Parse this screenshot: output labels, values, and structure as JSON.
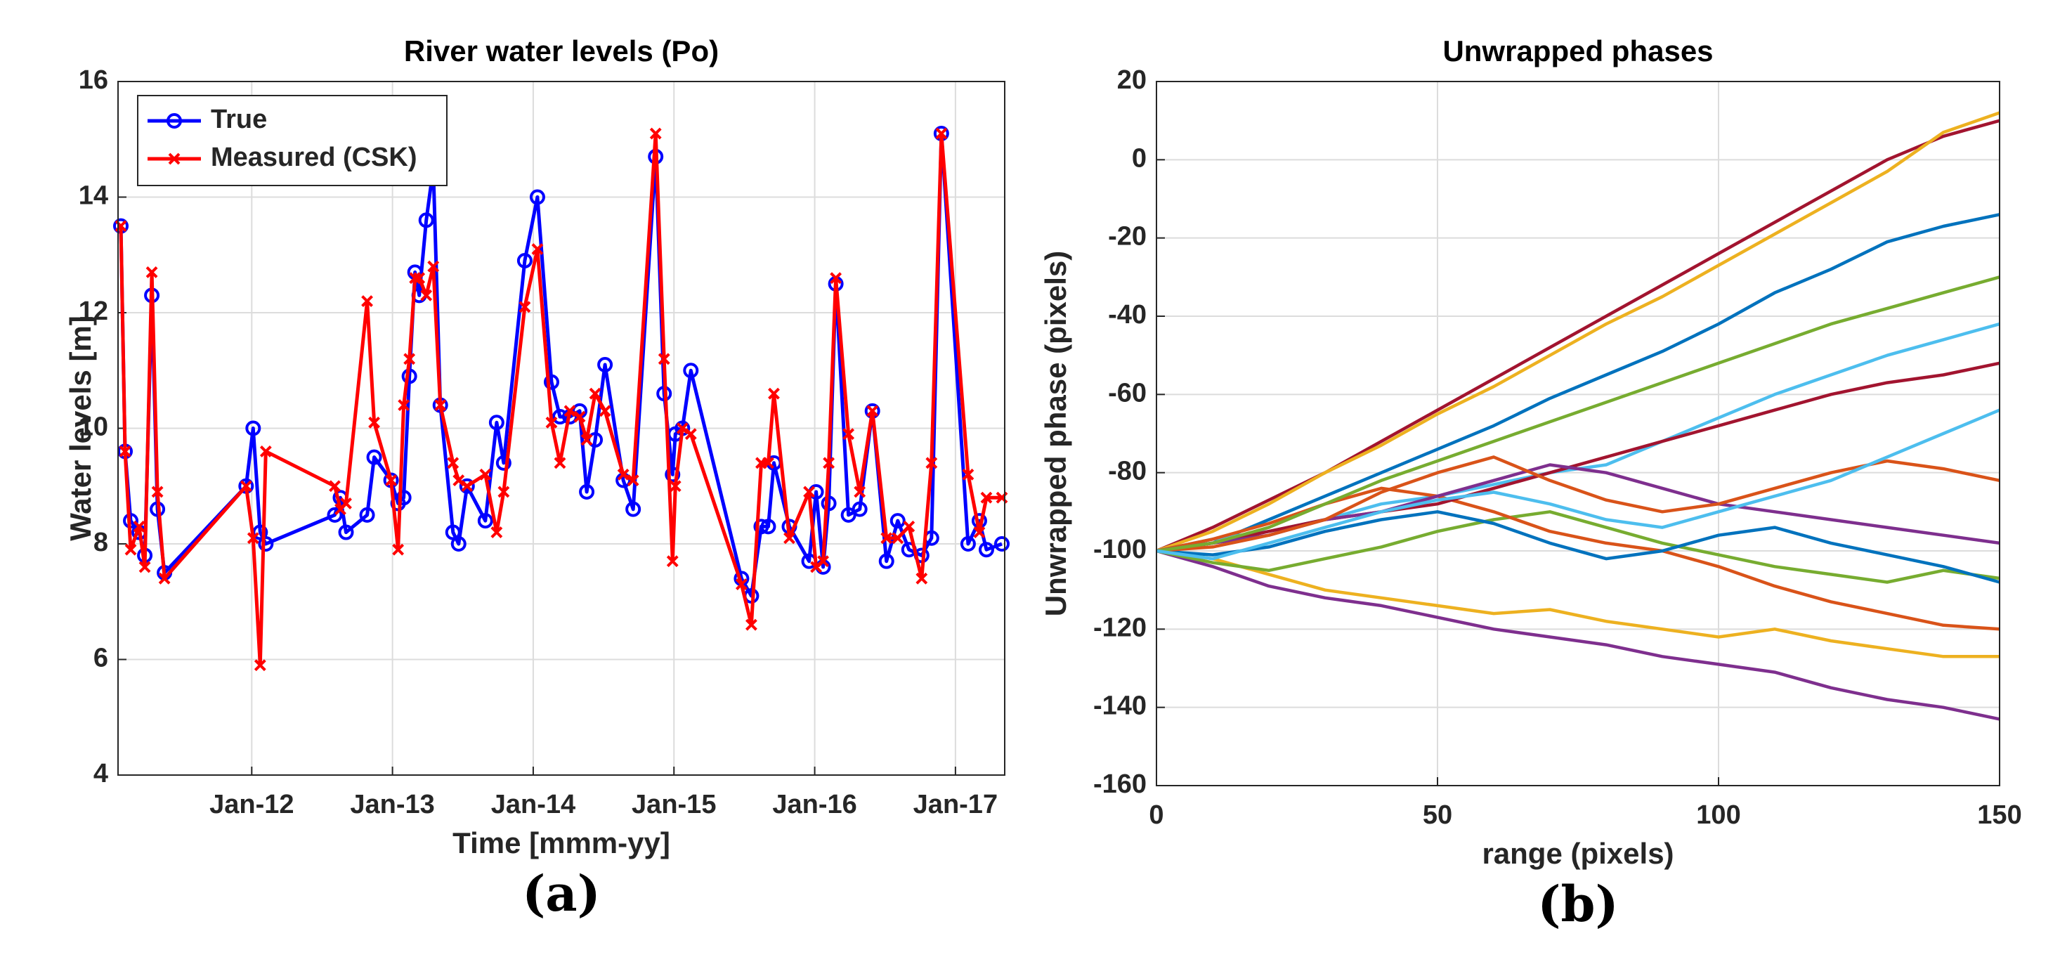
{
  "chart_data": [
    {
      "type": "line",
      "title": "River water levels (Po)",
      "xlabel": "Time [mmm-yy]",
      "ylabel": "Water levels [m]",
      "caption": "(a)",
      "x": [
        2011.07,
        2011.1,
        2011.14,
        2011.2,
        2011.24,
        2011.29,
        2011.33,
        2011.38,
        2011.96,
        2012.01,
        2012.06,
        2012.1,
        2012.59,
        2012.63,
        2012.67,
        2012.82,
        2012.87,
        2012.99,
        2013.04,
        2013.08,
        2013.12,
        2013.16,
        2013.19,
        2013.24,
        2013.29,
        2013.34,
        2013.43,
        2013.47,
        2013.53,
        2013.66,
        2013.74,
        2013.79,
        2013.94,
        2014.03,
        2014.13,
        2014.19,
        2014.26,
        2014.33,
        2014.38,
        2014.44,
        2014.51,
        2014.64,
        2014.71,
        2014.87,
        2014.93,
        2014.99,
        2015.01,
        2015.06,
        2015.12,
        2015.48,
        2015.55,
        2015.62,
        2015.67,
        2015.71,
        2015.82,
        2015.96,
        2016.01,
        2016.06,
        2016.1,
        2016.15,
        2016.24,
        2016.32,
        2016.41,
        2016.51,
        2016.59,
        2016.67,
        2016.76,
        2016.83,
        2016.9,
        2017.09,
        2017.17,
        2017.22,
        2017.33
      ],
      "series": [
        {
          "name": "True",
          "color": "#0000ff",
          "marker": "o",
          "values": [
            13.5,
            9.6,
            8.4,
            8.2,
            7.8,
            12.3,
            8.6,
            7.5,
            9.0,
            10.0,
            8.2,
            8.0,
            8.5,
            8.8,
            8.2,
            8.5,
            9.5,
            9.1,
            8.7,
            8.8,
            10.9,
            12.7,
            12.3,
            13.6,
            14.5,
            10.4,
            8.2,
            8.0,
            9.0,
            8.4,
            10.1,
            9.4,
            12.9,
            14.0,
            10.8,
            10.2,
            10.2,
            10.3,
            8.9,
            9.8,
            11.1,
            9.1,
            8.6,
            14.7,
            10.6,
            9.2,
            9.9,
            10.0,
            11.0,
            7.4,
            7.1,
            8.3,
            8.3,
            9.4,
            8.3,
            7.7,
            8.9,
            7.6,
            8.7,
            12.5,
            8.5,
            8.6,
            10.3,
            7.7,
            8.4,
            7.9,
            7.8,
            8.1,
            15.1,
            8.0,
            8.4,
            7.9,
            8.0
          ]
        },
        {
          "name": "Measured (CSK)",
          "color": "#ff0000",
          "marker": "x",
          "values": [
            13.5,
            9.6,
            7.9,
            8.3,
            7.6,
            12.7,
            8.9,
            7.4,
            9.0,
            8.1,
            5.9,
            9.6,
            9.0,
            8.6,
            8.7,
            12.2,
            10.1,
            9.1,
            7.9,
            10.4,
            11.2,
            12.6,
            12.6,
            12.3,
            12.8,
            10.4,
            9.4,
            9.1,
            9.0,
            9.2,
            8.2,
            8.9,
            12.1,
            13.1,
            10.1,
            9.4,
            10.3,
            10.2,
            9.8,
            10.6,
            10.3,
            9.2,
            9.1,
            15.1,
            11.2,
            7.7,
            9.0,
            10.0,
            9.9,
            7.3,
            6.6,
            9.4,
            9.4,
            10.6,
            8.1,
            8.9,
            7.6,
            7.7,
            9.4,
            12.6,
            9.9,
            8.9,
            10.3,
            8.1,
            8.1,
            8.3,
            7.4,
            9.4,
            15.1,
            9.2,
            8.2,
            8.8,
            8.8
          ]
        }
      ],
      "xlim": [
        2011.05,
        2017.35
      ],
      "xticks": [
        {
          "value": 2012,
          "label": "Jan-12"
        },
        {
          "value": 2013,
          "label": "Jan-13"
        },
        {
          "value": 2014,
          "label": "Jan-14"
        },
        {
          "value": 2015,
          "label": "Jan-15"
        },
        {
          "value": 2016,
          "label": "Jan-16"
        },
        {
          "value": 2017,
          "label": "Jan-17"
        }
      ],
      "ylim": [
        4,
        16
      ],
      "yticks": [
        4,
        6,
        8,
        10,
        12,
        14,
        16
      ],
      "grid": true,
      "legend": "upper left"
    },
    {
      "type": "line",
      "title": "Unwrapped phases",
      "xlabel": "range (pixels)",
      "ylabel": "Unwrapped phase (pixels)",
      "caption": "(b)",
      "x": [
        0,
        10,
        20,
        30,
        40,
        50,
        60,
        70,
        80,
        90,
        100,
        110,
        120,
        130,
        140,
        150
      ],
      "series": [
        {
          "color": "#A2142F",
          "values": [
            -100,
            -94,
            -87,
            -80,
            -72,
            -64,
            -56,
            -48,
            -40,
            -32,
            -24,
            -16,
            -8,
            0,
            6,
            10
          ]
        },
        {
          "color": "#EDB120",
          "values": [
            -100,
            -95,
            -88,
            -80,
            -73,
            -65,
            -58,
            -50,
            -42,
            -35,
            -27,
            -19,
            -11,
            -3,
            7,
            12
          ]
        },
        {
          "color": "#0072BD",
          "values": [
            -100,
            -98,
            -92,
            -86,
            -80,
            -74,
            -68,
            -61,
            -55,
            -49,
            -42,
            -34,
            -28,
            -21,
            -17,
            -14
          ]
        },
        {
          "color": "#7E2F8E",
          "values": [
            -100,
            -104,
            -109,
            -112,
            -114,
            -117,
            -120,
            -122,
            -124,
            -127,
            -129,
            -131,
            -135,
            -138,
            -140,
            -143
          ]
        },
        {
          "color": "#EDB120",
          "values": [
            -100,
            -102,
            -106,
            -110,
            -112,
            -114,
            -116,
            -115,
            -118,
            -120,
            -122,
            -120,
            -123,
            -125,
            -127,
            -127
          ]
        },
        {
          "color": "#4DBEEE",
          "values": [
            -100,
            -97,
            -95,
            -92,
            -88,
            -86,
            -83,
            -80,
            -78,
            -72,
            -66,
            -60,
            -55,
            -50,
            -46,
            -42
          ]
        },
        {
          "color": "#77AC30",
          "values": [
            -100,
            -103,
            -105,
            -102,
            -99,
            -95,
            -92,
            -90,
            -94,
            -98,
            -101,
            -104,
            -106,
            -108,
            -105,
            -107
          ]
        },
        {
          "color": "#D95319",
          "values": [
            -100,
            -97,
            -93,
            -88,
            -84,
            -86,
            -90,
            -95,
            -98,
            -100,
            -104,
            -109,
            -113,
            -116,
            -119,
            -120
          ]
        },
        {
          "color": "#A2142F",
          "values": [
            -100,
            -98,
            -95,
            -92,
            -90,
            -88,
            -84,
            -80,
            -76,
            -72,
            -68,
            -64,
            -60,
            -57,
            -55,
            -52
          ]
        },
        {
          "color": "#7E2F8E",
          "values": [
            -100,
            -98,
            -96,
            -92,
            -90,
            -86,
            -82,
            -78,
            -80,
            -84,
            -88,
            -90,
            -92,
            -94,
            -96,
            -98
          ]
        },
        {
          "color": "#0072BD",
          "values": [
            -100,
            -101,
            -99,
            -95,
            -92,
            -90,
            -93,
            -98,
            -102,
            -100,
            -96,
            -94,
            -98,
            -101,
            -104,
            -108
          ]
        },
        {
          "color": "#D95319",
          "values": [
            -100,
            -99,
            -96,
            -92,
            -85,
            -80,
            -76,
            -82,
            -87,
            -90,
            -88,
            -84,
            -80,
            -77,
            -79,
            -82
          ]
        },
        {
          "color": "#77AC30",
          "values": [
            -100,
            -98,
            -94,
            -88,
            -82,
            -77,
            -72,
            -67,
            -62,
            -57,
            -52,
            -47,
            -42,
            -38,
            -34,
            -30
          ]
        },
        {
          "color": "#4DBEEE",
          "values": [
            -100,
            -102,
            -98,
            -94,
            -90,
            -87,
            -85,
            -88,
            -92,
            -94,
            -90,
            -86,
            -82,
            -76,
            -70,
            -64
          ]
        }
      ],
      "xlim": [
        0,
        150
      ],
      "xticks": [
        0,
        50,
        100,
        150
      ],
      "ylim": [
        -160,
        20
      ],
      "yticks": [
        -160,
        -140,
        -120,
        -100,
        -80,
        -60,
        -40,
        -20,
        0,
        20
      ],
      "grid": true
    }
  ]
}
